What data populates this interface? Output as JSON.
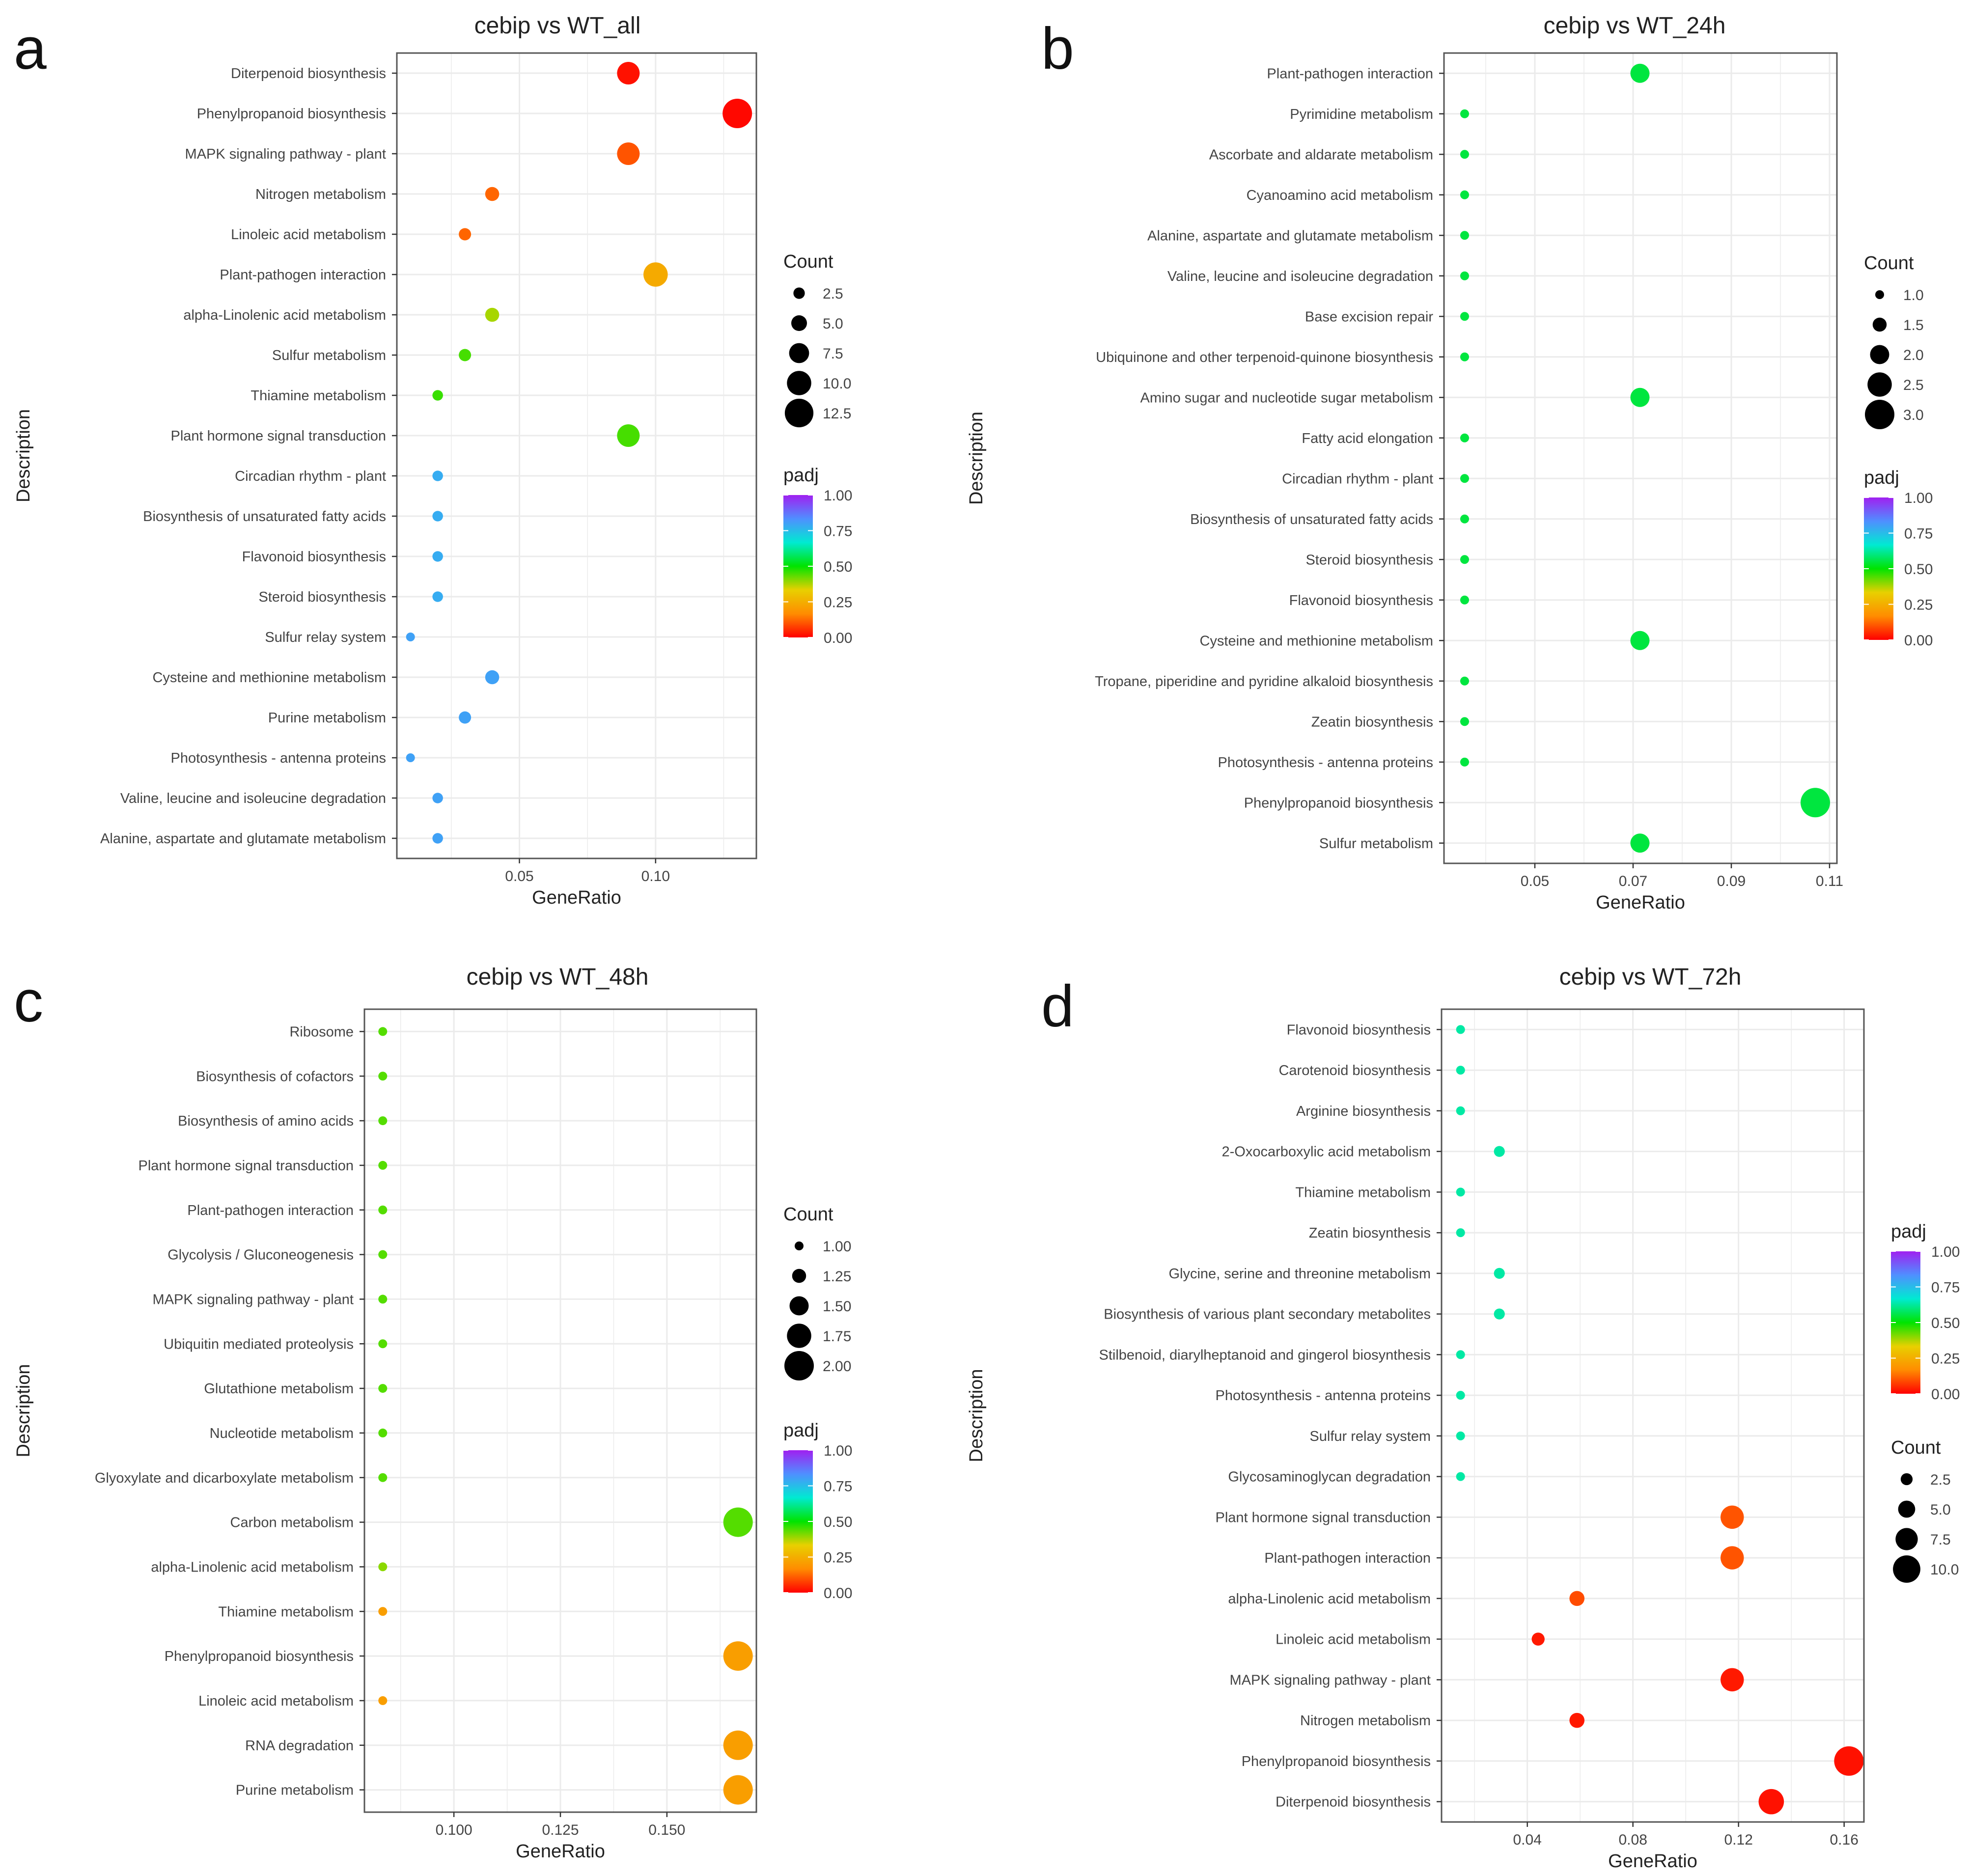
{
  "colors": {
    "gradient": [
      "#ff0000",
      "#ff8c00",
      "#e8d000",
      "#00e400",
      "#00ead2",
      "#4f8fff",
      "#a020f0"
    ],
    "grid": "#ebebeb",
    "panel_border": "#555555",
    "text": "#444444"
  },
  "chart_data": [
    {
      "type": "scatter",
      "panel_letter": "a",
      "title": "cebip vs WT_all",
      "xlabel": "GeneRatio",
      "ylabel": "Description",
      "xlim": [
        0.005,
        0.137
      ],
      "x_ticks": [
        0.05,
        0.1
      ],
      "x_tick_labels": [
        "0.05",
        "0.10"
      ],
      "grid": true,
      "size_legend_title": "Count",
      "size_domain": [
        1,
        13
      ],
      "size_legend_values": [
        2.5,
        5.0,
        7.5,
        10.0,
        12.5
      ],
      "size_legend_labels": [
        "2.5",
        "5.0",
        "7.5",
        "10.0",
        "12.5"
      ],
      "color_legend_title": "padj",
      "color_legend_labels": [
        "1.00",
        "0.75",
        "0.50",
        "0.25",
        "0.00"
      ],
      "legend_order": [
        "count",
        "padj"
      ],
      "legend_placement": "right",
      "categories": [
        "Diterpenoid biosynthesis",
        "Phenylpropanoid biosynthesis",
        "MAPK signaling pathway - plant",
        "Nitrogen metabolism",
        "Linoleic acid metabolism",
        "Plant-pathogen interaction",
        "alpha-Linolenic acid metabolism",
        "Sulfur metabolism",
        "Thiamine metabolism",
        "Plant hormone signal transduction",
        "Circadian rhythm - plant",
        "Biosynthesis of unsaturated fatty acids",
        "Flavonoid biosynthesis",
        "Steroid biosynthesis",
        "Sulfur relay system",
        "Cysteine and methionine metabolism",
        "Purine metabolism",
        "Photosynthesis - antenna proteins",
        "Valine, leucine and isoleucine degradation",
        "Alanine, aspartate and glutamate metabolism"
      ],
      "gene_ratio": [
        0.09,
        0.13,
        0.09,
        0.04,
        0.03,
        0.1,
        0.04,
        0.03,
        0.02,
        0.09,
        0.02,
        0.02,
        0.02,
        0.02,
        0.01,
        0.04,
        0.03,
        0.01,
        0.02,
        0.02
      ],
      "count": [
        9,
        13,
        9,
        4,
        3,
        10,
        4,
        3,
        2,
        9,
        2,
        2,
        2,
        2,
        1,
        4,
        3,
        1,
        2,
        2
      ],
      "padj": [
        0.02,
        0.01,
        0.1,
        0.12,
        0.12,
        0.24,
        0.38,
        0.45,
        0.46,
        0.45,
        0.78,
        0.78,
        0.78,
        0.78,
        0.8,
        0.8,
        0.8,
        0.8,
        0.8,
        0.8
      ]
    },
    {
      "type": "scatter",
      "panel_letter": "b",
      "title": "cebip vs WT_24h",
      "xlabel": "GeneRatio",
      "ylabel": "Description",
      "xlim": [
        0.0315,
        0.1115
      ],
      "x_ticks": [
        0.05,
        0.07,
        0.09,
        0.11
      ],
      "x_tick_labels": [
        "0.05",
        "0.07",
        "0.09",
        "0.11"
      ],
      "grid": true,
      "size_legend_title": "Count",
      "size_domain": [
        1,
        3
      ],
      "size_legend_values": [
        1.0,
        1.5,
        2.0,
        2.5,
        3.0
      ],
      "size_legend_labels": [
        "1.0",
        "1.5",
        "2.0",
        "2.5",
        "3.0"
      ],
      "color_legend_title": "padj",
      "color_legend_labels": [
        "1.00",
        "0.75",
        "0.50",
        "0.25",
        "0.00"
      ],
      "legend_order": [
        "count",
        "padj"
      ],
      "legend_placement": "right",
      "categories": [
        "Plant-pathogen interaction",
        "Pyrimidine metabolism",
        "Ascorbate and aldarate metabolism",
        "Cyanoamino acid metabolism",
        "Alanine, aspartate and glutamate metabolism",
        "Valine, leucine and isoleucine degradation",
        "Base excision repair",
        "Ubiquinone and other terpenoid-quinone biosynthesis",
        "Amino sugar and nucleotide sugar metabolism",
        "Fatty acid elongation",
        "Circadian rhythm - plant",
        "Biosynthesis of unsaturated fatty acids",
        "Steroid biosynthesis",
        "Flavonoid biosynthesis",
        "Cysteine and methionine metabolism",
        "Tropane, piperidine and pyridine alkaloid biosynthesis",
        "Zeatin biosynthesis",
        "Photosynthesis - antenna proteins",
        "Phenylpropanoid biosynthesis",
        "Sulfur metabolism"
      ],
      "gene_ratio": [
        0.0714,
        0.0357,
        0.0357,
        0.0357,
        0.0357,
        0.0357,
        0.0357,
        0.0357,
        0.0714,
        0.0357,
        0.0357,
        0.0357,
        0.0357,
        0.0357,
        0.0714,
        0.0357,
        0.0357,
        0.0357,
        0.1071,
        0.0714
      ],
      "count": [
        2,
        1,
        1,
        1,
        1,
        1,
        1,
        1,
        2,
        1,
        1,
        1,
        1,
        1,
        2,
        1,
        1,
        1,
        3,
        2
      ],
      "padj": [
        0.55,
        0.55,
        0.55,
        0.55,
        0.55,
        0.55,
        0.55,
        0.55,
        0.55,
        0.55,
        0.55,
        0.55,
        0.55,
        0.55,
        0.55,
        0.55,
        0.55,
        0.55,
        0.55,
        0.55
      ]
    },
    {
      "type": "scatter",
      "panel_letter": "c",
      "title": "cebip vs WT_48h",
      "xlabel": "GeneRatio",
      "ylabel": "Description",
      "xlim": [
        0.079,
        0.171
      ],
      "x_ticks": [
        0.1,
        0.125,
        0.15
      ],
      "x_tick_labels": [
        "0.100",
        "0.125",
        "0.150"
      ],
      "grid": true,
      "size_legend_title": "Count",
      "size_domain": [
        1,
        2
      ],
      "size_legend_values": [
        1.0,
        1.25,
        1.5,
        1.75,
        2.0
      ],
      "size_legend_labels": [
        "1.00",
        "1.25",
        "1.50",
        "1.75",
        "2.00"
      ],
      "color_legend_title": "padj",
      "color_legend_labels": [
        "1.00",
        "0.75",
        "0.50",
        "0.25",
        "0.00"
      ],
      "legend_order": [
        "count",
        "padj"
      ],
      "legend_placement": "right",
      "categories": [
        "Ribosome",
        "Biosynthesis of cofactors",
        "Biosynthesis of amino acids",
        "Plant hormone signal transduction",
        "Plant-pathogen interaction",
        "Glycolysis / Gluconeogenesis",
        "MAPK signaling pathway - plant",
        "Ubiquitin mediated proteolysis",
        "Glutathione metabolism",
        "Nucleotide metabolism",
        "Glyoxylate and dicarboxylate metabolism",
        "Carbon metabolism",
        "alpha-Linolenic acid metabolism",
        "Thiamine metabolism",
        "Phenylpropanoid biosynthesis",
        "Linoleic acid metabolism",
        "RNA degradation",
        "Purine metabolism"
      ],
      "gene_ratio": [
        0.0833,
        0.0833,
        0.0833,
        0.0833,
        0.0833,
        0.0833,
        0.0833,
        0.0833,
        0.0833,
        0.0833,
        0.0833,
        0.1667,
        0.0833,
        0.0833,
        0.1667,
        0.0833,
        0.1667,
        0.1667
      ],
      "count": [
        1,
        1,
        1,
        1,
        1,
        1,
        1,
        1,
        1,
        1,
        1,
        2,
        1,
        1,
        2,
        1,
        2,
        2
      ],
      "padj": [
        0.44,
        0.44,
        0.44,
        0.44,
        0.44,
        0.44,
        0.44,
        0.44,
        0.44,
        0.44,
        0.44,
        0.44,
        0.4,
        0.21,
        0.21,
        0.21,
        0.21,
        0.21
      ]
    },
    {
      "type": "scatter",
      "panel_letter": "d",
      "title": "cebip vs WT_72h",
      "xlabel": "GeneRatio",
      "ylabel": "Description",
      "xlim": [
        0.0075,
        0.1675
      ],
      "x_ticks": [
        0.04,
        0.08,
        0.12,
        0.16
      ],
      "x_tick_labels": [
        "0.04",
        "0.08",
        "0.12",
        "0.16"
      ],
      "grid": true,
      "size_legend_title": "Count",
      "size_domain": [
        1,
        11
      ],
      "size_legend_values": [
        2.5,
        5.0,
        7.5,
        10.0
      ],
      "size_legend_labels": [
        "2.5",
        "5.0",
        "7.5",
        "10.0"
      ],
      "color_legend_title": "padj",
      "color_legend_labels": [
        "1.00",
        "0.75",
        "0.50",
        "0.25",
        "0.00"
      ],
      "legend_order": [
        "padj",
        "count"
      ],
      "legend_placement": "right",
      "categories": [
        "Flavonoid biosynthesis",
        "Carotenoid biosynthesis",
        "Arginine biosynthesis",
        "2-Oxocarboxylic acid metabolism",
        "Thiamine metabolism",
        "Zeatin biosynthesis",
        "Glycine, serine and threonine metabolism",
        "Biosynthesis of various plant secondary metabolites",
        "Stilbenoid, diarylheptanoid and gingerol biosynthesis",
        "Photosynthesis - antenna proteins",
        "Sulfur relay system",
        "Glycosaminoglycan degradation",
        "Plant hormone signal transduction",
        "Plant-pathogen interaction",
        "alpha-Linolenic acid metabolism",
        "Linoleic acid metabolism",
        "MAPK signaling pathway - plant",
        "Nitrogen metabolism",
        "Phenylpropanoid biosynthesis",
        "Diterpenoid biosynthesis"
      ],
      "gene_ratio": [
        0.0147,
        0.0147,
        0.0147,
        0.0294,
        0.0147,
        0.0147,
        0.0294,
        0.0294,
        0.0147,
        0.0147,
        0.0147,
        0.0147,
        0.1176,
        0.1176,
        0.0588,
        0.0441,
        0.1176,
        0.0588,
        0.1618,
        0.1324
      ],
      "count": [
        1,
        1,
        1,
        2,
        1,
        1,
        2,
        2,
        1,
        1,
        1,
        1,
        8,
        8,
        4,
        3,
        8,
        4,
        11,
        9
      ],
      "padj": [
        0.63,
        0.63,
        0.63,
        0.63,
        0.63,
        0.63,
        0.63,
        0.63,
        0.63,
        0.63,
        0.63,
        0.63,
        0.1,
        0.1,
        0.09,
        0.03,
        0.03,
        0.03,
        0.02,
        0.02
      ]
    }
  ]
}
